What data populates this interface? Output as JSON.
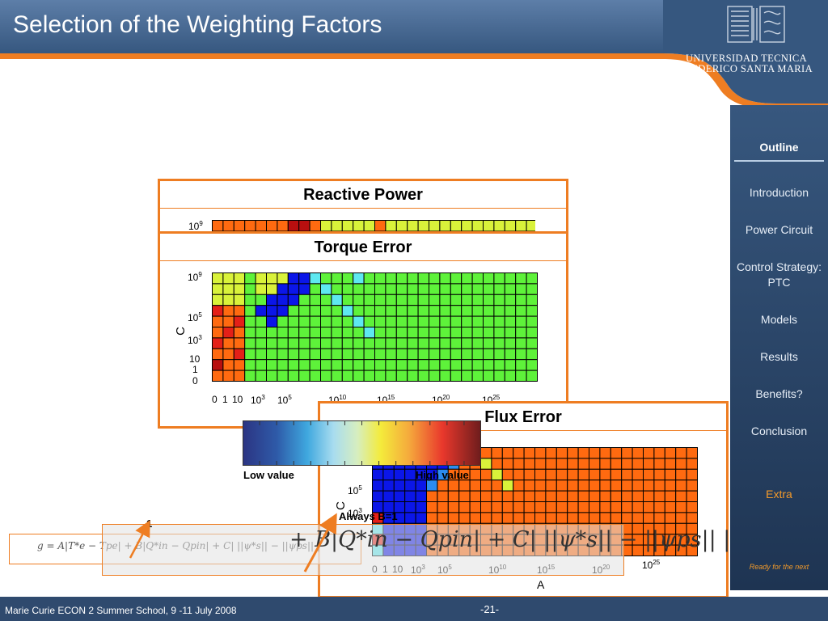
{
  "slide": {
    "title": "Selection of the Weighting Factors"
  },
  "branding": {
    "university_line1": "UNIVERSIDAD TECNICA",
    "university_line2": "FEDERICO SANTA MARIA",
    "logo_icon": "university-crest-icon"
  },
  "sidebar": {
    "heading": "Outline",
    "items": [
      {
        "label": "Introduction"
      },
      {
        "label": "Power Circuit"
      },
      {
        "label": "Control Strategy: PTC"
      },
      {
        "label": "Models"
      },
      {
        "label": "Results"
      },
      {
        "label": "Benefits?"
      },
      {
        "label": "Conclusion"
      },
      {
        "label": "Extra"
      }
    ],
    "note": "Ready for the next"
  },
  "panels": {
    "reactive": {
      "title": "Reactive Power"
    },
    "torque": {
      "title": "Torque Error"
    },
    "flux": {
      "title": "Flux Error"
    }
  },
  "colorbar": {
    "low_label": "Low value",
    "high_label": "High value"
  },
  "annotations": {
    "always_b": "Always B=1",
    "one": "1",
    "a": "A"
  },
  "formula": {
    "small": "g = A|T*e − Tpe| + B|Q*in − Qpin| + C| ||ψ*s|| − ||ψps|| |",
    "big": "+ B|Q*in − Qpin| + C| ||ψ*s|| − ||ψps|| |"
  },
  "footer": {
    "text": "Marie Curie ECON 2 Summer School, 9 -11 July 2008",
    "page": "-21-"
  },
  "colors": {
    "accent": "#ee7d22",
    "header": "#36577f",
    "sidebar": "#2a4668",
    "green": "#5ef23a",
    "blue": "#0b16e8",
    "orange": "#ff6a10"
  }
}
